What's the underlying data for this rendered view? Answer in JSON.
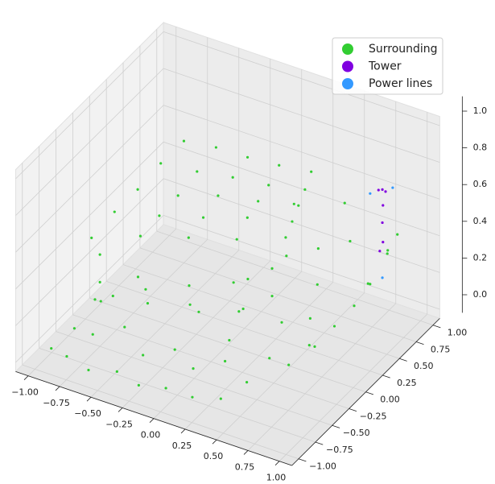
{
  "chart_data": {
    "type": "scatter3d",
    "xlim": [
      -1.1,
      1.1
    ],
    "ylim": [
      -1.1,
      1.1
    ],
    "zlim": [
      -0.05,
      1.05
    ],
    "xticks": [
      {
        "value": -1,
        "label": "−1.00"
      },
      {
        "value": -0.75,
        "label": "−0.75"
      },
      {
        "value": -0.5,
        "label": "−0.50"
      },
      {
        "value": -0.25,
        "label": "−0.25"
      },
      {
        "value": 0,
        "label": "0.00"
      },
      {
        "value": 0.25,
        "label": "0.25"
      },
      {
        "value": 0.5,
        "label": "0.50"
      },
      {
        "value": 0.75,
        "label": "0.75"
      },
      {
        "value": 1,
        "label": "1.00"
      }
    ],
    "yticks": [
      {
        "value": -1,
        "label": "−1.00"
      },
      {
        "value": -0.75,
        "label": "−0.75"
      },
      {
        "value": -0.5,
        "label": "−0.50"
      },
      {
        "value": -0.25,
        "label": "−0.25"
      },
      {
        "value": 0,
        "label": "0.00"
      },
      {
        "value": 0.25,
        "label": "0.25"
      },
      {
        "value": 0.5,
        "label": "0.50"
      },
      {
        "value": 0.75,
        "label": "0.75"
      },
      {
        "value": 1,
        "label": "1.00"
      }
    ],
    "zticks": [
      {
        "value": 0,
        "label": "0.0"
      },
      0.2,
      0.4,
      0.6,
      0.8,
      {
        "value": 1,
        "label": "1.0"
      }
    ],
    "grid": true,
    "legend": "upper right",
    "series": [
      {
        "name": "Surrounding",
        "color": "#32cd32",
        "x": [
          -0.79,
          -0.5,
          -0.215,
          0.07,
          0.36,
          -0.798,
          -0.52,
          -0.248,
          0.025,
          0.303,
          -0.805,
          -0.54,
          -0.28,
          -0.02,
          0.245,
          -0.813,
          -0.56,
          -0.313,
          -0.065,
          0.188,
          -0.82,
          -0.58,
          -0.345,
          -0.11,
          0.13,
          -0.95,
          -0.8,
          -0.6,
          -0.4,
          -0.2,
          0.0,
          0.2,
          0.4,
          -0.9,
          -0.7,
          -0.5,
          -0.3,
          -0.1,
          0.1,
          0.3,
          0.5,
          0.6,
          0.7,
          0.8,
          0.85,
          0.9,
          0.92,
          0.95,
          0.95,
          0.9,
          0.85,
          -0.75,
          -0.75,
          -0.7,
          -0.5,
          -0.45,
          -0.2,
          -0.15,
          0.1,
          0.15,
          0.3,
          0.3,
          0.35,
          0.25,
          0.2,
          -0.3,
          -0.6,
          0.0,
          0.2,
          0.4,
          0.5,
          0.6,
          0.1,
          0.45,
          0.55,
          0.65,
          -0.85,
          -0.95
        ],
        "y": [
          -0.55,
          -0.365,
          -0.18,
          0.005,
          0.19,
          -0.193,
          -0.046,
          0.1,
          0.246,
          0.393,
          0.165,
          0.27,
          0.38,
          0.49,
          0.595,
          0.523,
          0.59,
          0.66,
          0.73,
          0.798,
          0.88,
          0.91,
          0.94,
          0.97,
          1.0,
          -0.85,
          -0.9,
          -0.95,
          -0.9,
          -0.95,
          -0.92,
          -0.9,
          -0.85,
          -0.6,
          -0.7,
          -0.6,
          -0.7,
          -0.6,
          -0.7,
          -0.6,
          -0.65,
          -0.5,
          -0.4,
          -0.2,
          0.0,
          0.2,
          0.4,
          0.6,
          0.75,
          0.7,
          0.5,
          -0.5,
          -0.5,
          -0.4,
          -0.4,
          -0.35,
          -0.2,
          -0.15,
          -0.1,
          -0.05,
          0.1,
          0.1,
          0.15,
          -0.3,
          -0.35,
          0.0,
          -0.1,
          0.3,
          0.5,
          0.6,
          0.4,
          0.7,
          0.8,
          0.9,
          0.2,
          0.0,
          -0.3,
          -0.2
        ],
        "z": [
          0.55,
          0.56,
          0.55,
          0.54,
          0.55,
          0.56,
          0.55,
          0.55,
          0.56,
          0.55,
          0.55,
          0.54,
          0.56,
          0.55,
          0.55,
          0.56,
          0.55,
          0.55,
          0.54,
          0.55,
          0.55,
          0.56,
          0.55,
          0.55,
          0.56,
          0.02,
          0.03,
          0.02,
          0.04,
          0.03,
          0.05,
          0.04,
          0.06,
          0.05,
          0.1,
          0.15,
          0.08,
          0.12,
          0.1,
          0.15,
          0.1,
          0.2,
          0.15,
          0.2,
          0.25,
          0.3,
          0.35,
          0.45,
          0.5,
          0.42,
          0.3,
          0.3,
          0.45,
          0.2,
          0.35,
          0.2,
          0.3,
          0.15,
          0.35,
          0.2,
          0.4,
          0.25,
          0.1,
          0.3,
          0.15,
          0.1,
          0.15,
          0.2,
          0.3,
          0.35,
          0.25,
          0.4,
          0.45,
          0.5,
          0.15,
          0.1,
          0.1,
          0.05
        ]
      },
      {
        "name": "Tower",
        "color": "#8000e0",
        "x": [
          0.9,
          0.92,
          0.88,
          0.91,
          0.9,
          0.91,
          0.89
        ],
        "y": [
          0.62,
          0.63,
          0.6,
          0.61,
          0.62,
          0.61,
          0.6
        ],
        "z": [
          0.78,
          0.77,
          0.78,
          0.7,
          0.6,
          0.5,
          0.45
        ]
      },
      {
        "name": "Power lines",
        "color": "#3399ff",
        "x": [
          0.95,
          0.84,
          0.9
        ],
        "y": [
          0.68,
          0.55,
          0.62
        ],
        "z": [
          0.78,
          0.77,
          0.3
        ]
      }
    ]
  }
}
